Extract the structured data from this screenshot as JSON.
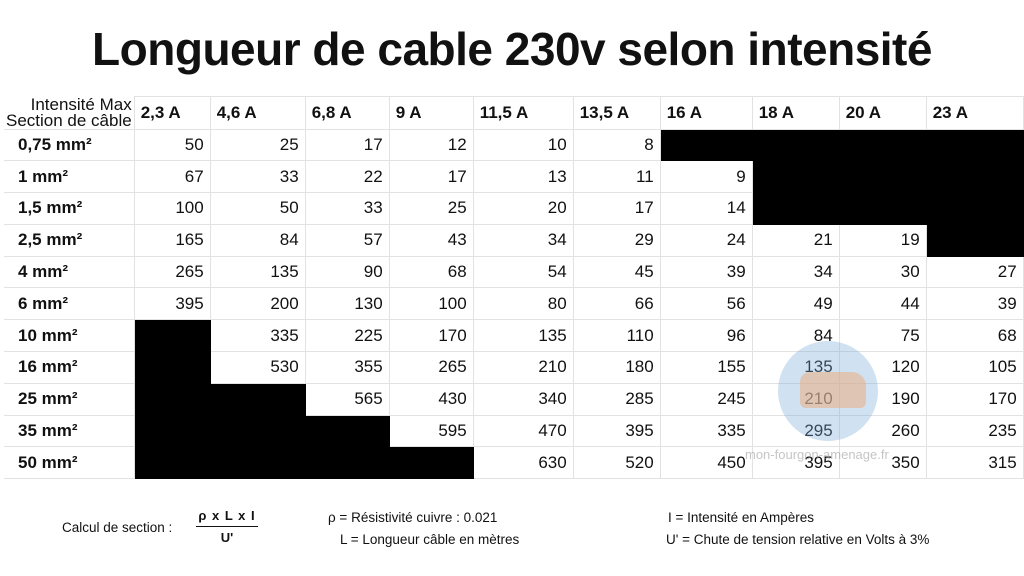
{
  "title": "Longueur de cable 230v selon intensité",
  "header": {
    "label_intensity": "Intensité Max",
    "label_section": "Section de câble",
    "columns": [
      "2,3 A",
      "4,6 A",
      "6,8 A",
      "9 A",
      "11,5 A",
      "13,5 A",
      "16 A",
      "18 A",
      "20 A",
      "23 A"
    ]
  },
  "rows": [
    {
      "section": "0,75 mm²",
      "values": [
        "50",
        "25",
        "17",
        "12",
        "10",
        "8",
        null,
        null,
        null,
        null
      ]
    },
    {
      "section": "1 mm²",
      "values": [
        "67",
        "33",
        "22",
        "17",
        "13",
        "11",
        "9",
        null,
        null,
        null
      ]
    },
    {
      "section": "1,5 mm²",
      "values": [
        "100",
        "50",
        "33",
        "25",
        "20",
        "17",
        "14",
        null,
        null,
        null
      ]
    },
    {
      "section": "2,5 mm²",
      "values": [
        "165",
        "84",
        "57",
        "43",
        "34",
        "29",
        "24",
        "21",
        "19",
        null
      ]
    },
    {
      "section": "4 mm²",
      "values": [
        "265",
        "135",
        "90",
        "68",
        "54",
        "45",
        "39",
        "34",
        "30",
        "27"
      ]
    },
    {
      "section": "6 mm²",
      "values": [
        "395",
        "200",
        "130",
        "100",
        "80",
        "66",
        "56",
        "49",
        "44",
        "39"
      ]
    },
    {
      "section": "10 mm²",
      "values": [
        null,
        "335",
        "225",
        "170",
        "135",
        "110",
        "96",
        "84",
        "75",
        "68"
      ]
    },
    {
      "section": "16 mm²",
      "values": [
        null,
        "530",
        "355",
        "265",
        "210",
        "180",
        "155",
        "135",
        "120",
        "105"
      ]
    },
    {
      "section": "25 mm²",
      "values": [
        null,
        null,
        "565",
        "430",
        "340",
        "285",
        "245",
        "210",
        "190",
        "170"
      ]
    },
    {
      "section": "35 mm²",
      "values": [
        null,
        null,
        null,
        "595",
        "470",
        "395",
        "335",
        "295",
        "260",
        "235"
      ]
    },
    {
      "section": "50 mm²",
      "values": [
        null,
        null,
        null,
        null,
        "630",
        "520",
        "450",
        "395",
        "350",
        "315"
      ]
    }
  ],
  "watermark": "mon-fourgon-amenage.fr",
  "formula": {
    "label": "Calcul de section :",
    "numerator": "ρ x L x I",
    "denominator": "U'"
  },
  "legend": {
    "rho": "ρ = Résistivité cuivre : 0.021",
    "length": "L = Longueur câble en mètres",
    "intensity": "I = Intensité en Ampères",
    "voltage_drop": "U' = Chute de tension relative en Volts à 3%"
  },
  "colors": {
    "blocked": "#000000",
    "text": "#111111"
  }
}
